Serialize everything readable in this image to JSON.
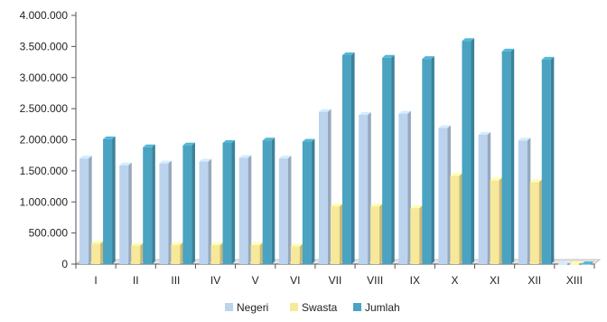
{
  "chart_data": {
    "type": "bar",
    "style": "3d-clustered-column",
    "categories": [
      "I",
      "II",
      "III",
      "IV",
      "V",
      "VI",
      "VII",
      "VIII",
      "IX",
      "X",
      "XI",
      "XII",
      "XIII"
    ],
    "series": [
      {
        "name": "Negeri",
        "color": "#bcd3ee",
        "values": [
          1700000,
          1590000,
          1620000,
          1650000,
          1710000,
          1700000,
          2450000,
          2400000,
          2420000,
          2190000,
          2080000,
          1990000,
          0
        ]
      },
      {
        "name": "Swasta",
        "color": "#f7e89a",
        "values": [
          330000,
          300000,
          310000,
          305000,
          305000,
          285000,
          930000,
          930000,
          900000,
          1420000,
          1350000,
          1320000,
          0
        ]
      },
      {
        "name": "Jumlah",
        "color": "#4aa3c1",
        "values": [
          2010000,
          1880000,
          1910000,
          1950000,
          1990000,
          1970000,
          3360000,
          3320000,
          3300000,
          3590000,
          3420000,
          3290000,
          0
        ]
      }
    ],
    "yticks": [
      "0",
      "500.000",
      "1.000.000",
      "1.500.000",
      "2.000.000",
      "2.500.000",
      "3.000.000",
      "3.500.000",
      "4.000.000"
    ],
    "ylim": [
      0,
      4000000
    ],
    "grid": false,
    "legend_position": "bottom"
  }
}
